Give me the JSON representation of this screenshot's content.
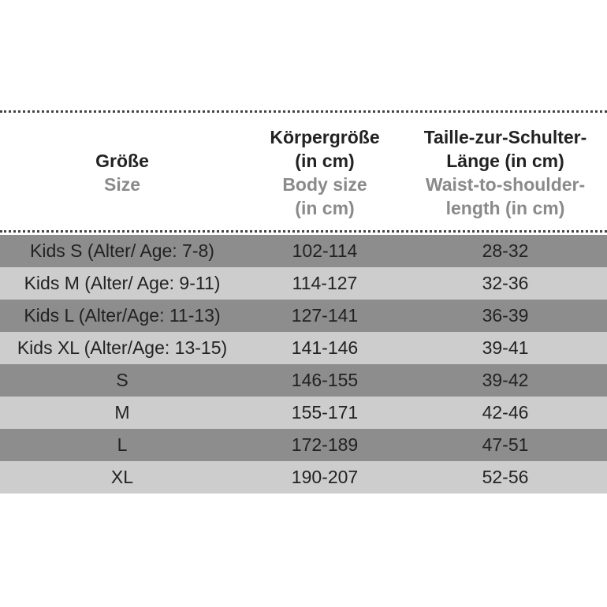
{
  "table": {
    "headers": [
      {
        "german": [
          "Größe"
        ],
        "english": [
          "Size"
        ]
      },
      {
        "german": [
          "Körpergröße",
          "(in cm)"
        ],
        "english": [
          "Body size",
          "(in cm)"
        ]
      },
      {
        "german": [
          "Taille-zur-Schulter-",
          "Länge (in cm)"
        ],
        "english": [
          "Waist-to-shoulder-",
          "length (in cm)"
        ]
      }
    ],
    "rows": [
      [
        "Kids S (Alter/ Age: 7-8)",
        "102-114",
        "28-32"
      ],
      [
        "Kids M (Alter/ Age: 9-11)",
        "114-127",
        "32-36"
      ],
      [
        "Kids L (Alter/Age: 11-13)",
        "127-141",
        "36-39"
      ],
      [
        "Kids XL (Alter/Age: 13-15)",
        "141-146",
        "39-41"
      ],
      [
        "S",
        "146-155",
        "39-42"
      ],
      [
        "M",
        "155-171",
        "42-46"
      ],
      [
        "L",
        "172-189",
        "47-51"
      ],
      [
        "XL",
        "190-207",
        "52-56"
      ]
    ]
  }
}
